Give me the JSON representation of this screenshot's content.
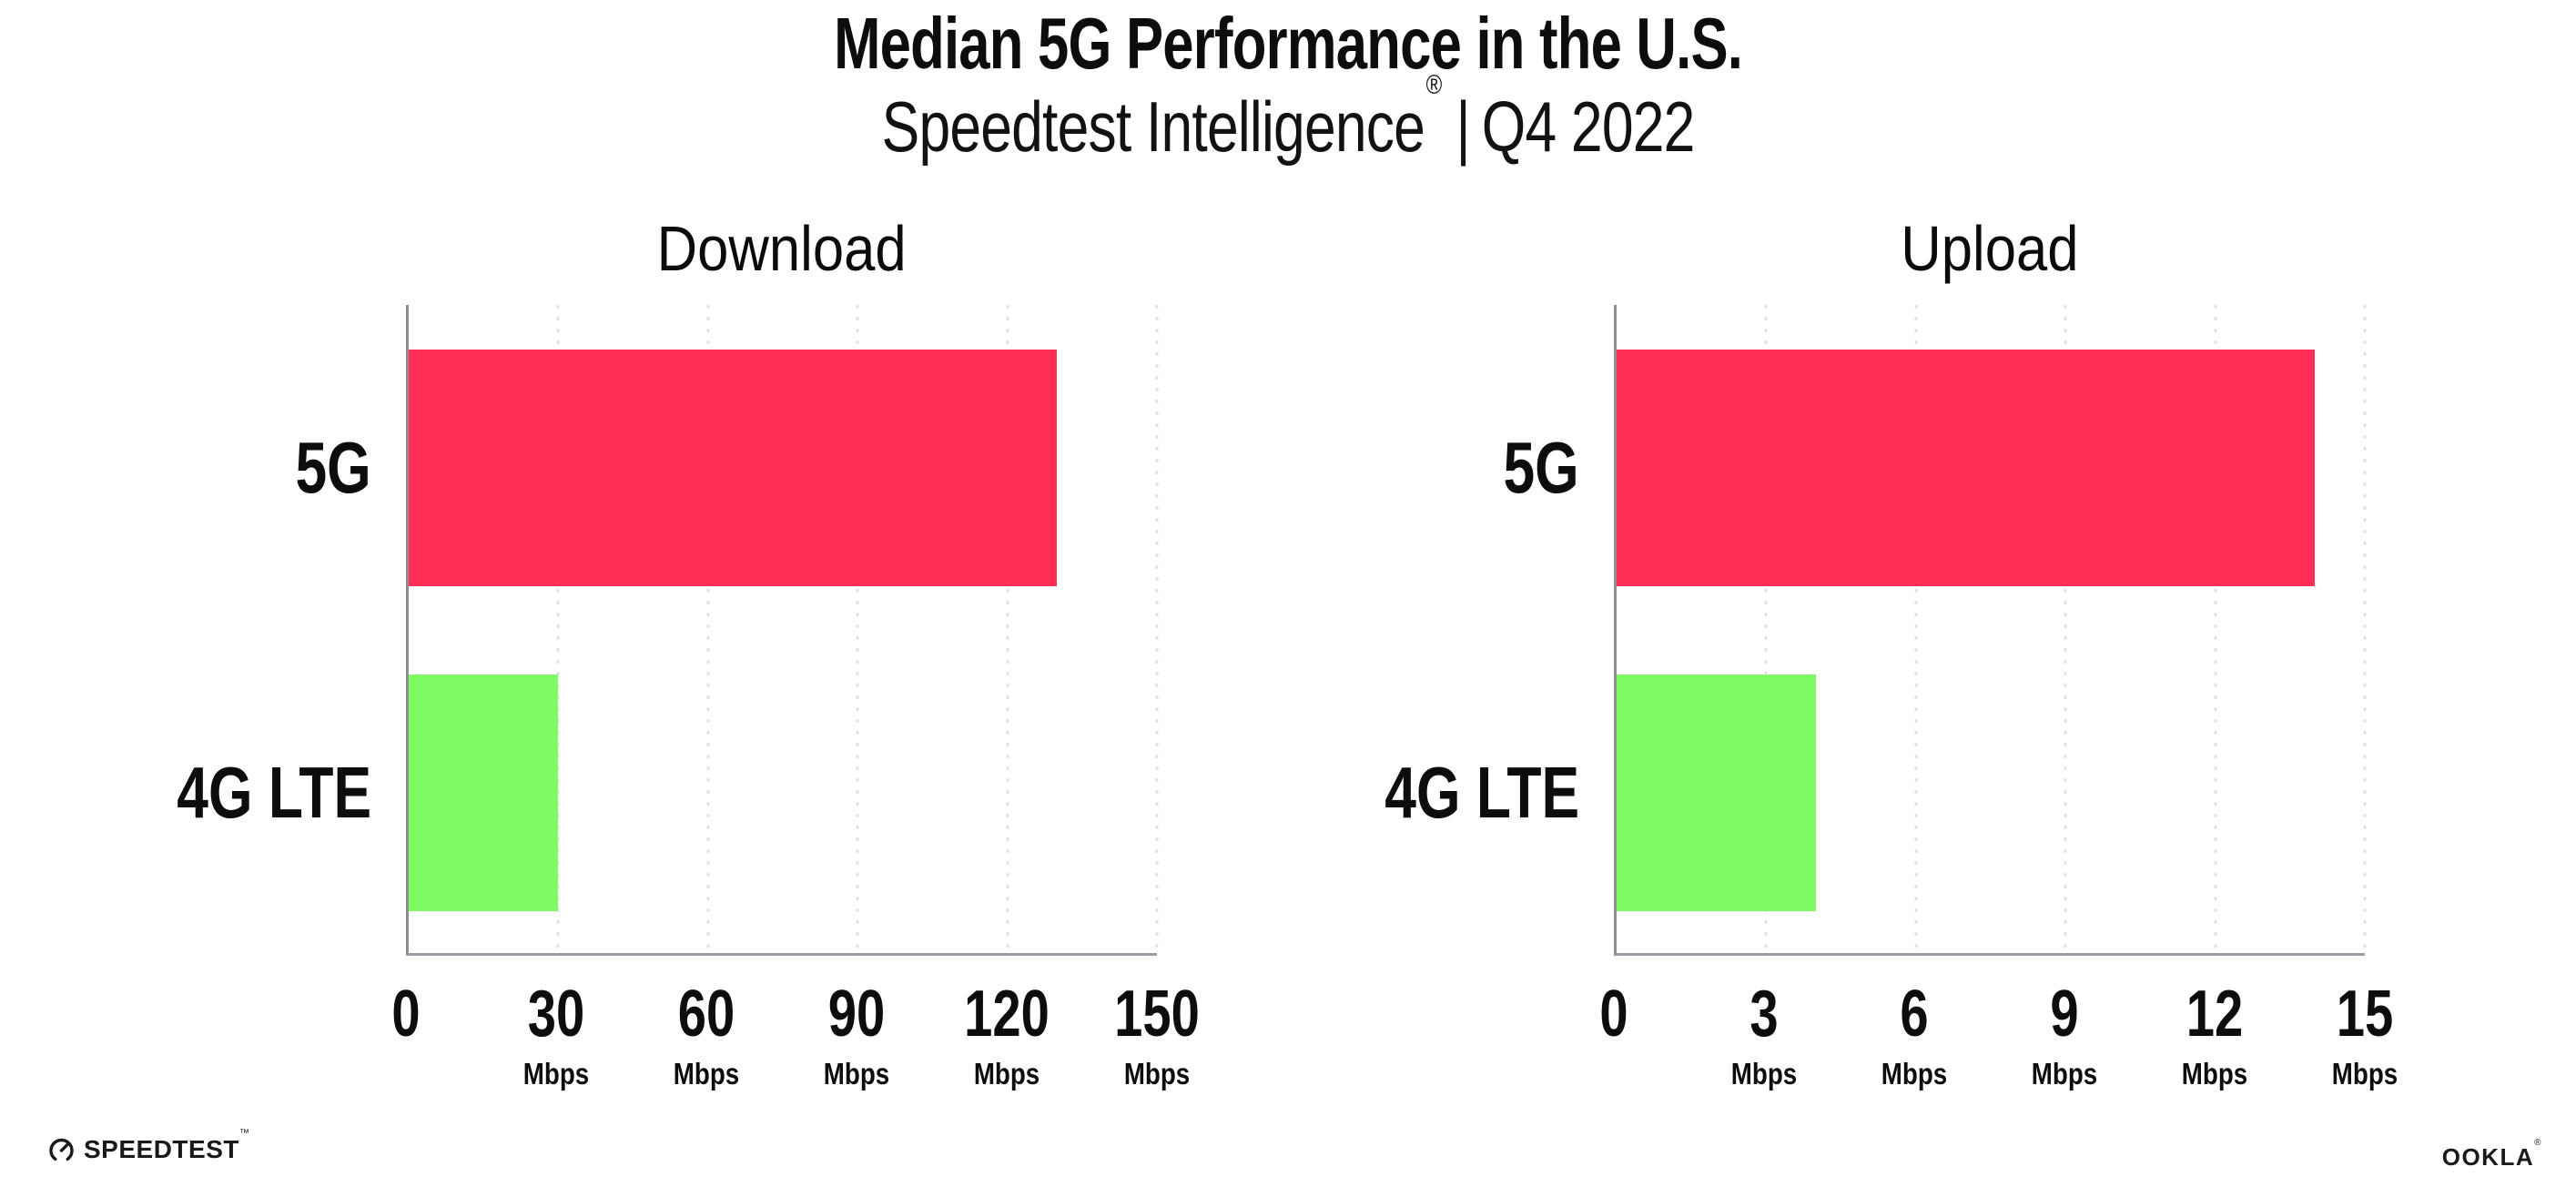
{
  "header": {
    "title": "Median 5G Performance in the U.S.",
    "subtitle_product": "Speedtest Intelligence",
    "subtitle_reg": "®",
    "subtitle_separator": "|",
    "subtitle_period": "Q4 2022"
  },
  "chart_data": [
    {
      "type": "bar",
      "orientation": "horizontal",
      "title": "Download",
      "categories": [
        "5G",
        "4G LTE"
      ],
      "values": [
        130,
        30
      ],
      "unit": "Mbps",
      "xlim": [
        0,
        150
      ],
      "xticks": [
        0,
        30,
        60,
        90,
        120,
        150
      ],
      "bar_colors": [
        "#FF2E56",
        "#7FFB63"
      ],
      "grid": "dotted-vertical",
      "legend_position": "none"
    },
    {
      "type": "bar",
      "orientation": "horizontal",
      "title": "Upload",
      "categories": [
        "5G",
        "4G LTE"
      ],
      "values": [
        14,
        4
      ],
      "unit": "Mbps",
      "xlim": [
        0,
        15
      ],
      "xticks": [
        0,
        3,
        6,
        9,
        12,
        15
      ],
      "bar_colors": [
        "#FF2E56",
        "#7FFB63"
      ],
      "grid": "dotted-vertical",
      "legend_position": "none"
    }
  ],
  "footer": {
    "speedtest_label": "SPEEDTEST",
    "speedtest_tm": "™",
    "ookla_label": "OOKLA",
    "ookla_reg": "®"
  },
  "colors": {
    "bar_5g": "#FF2E56",
    "bar_4g_lte": "#7FFB63",
    "gridline": "#E1E2EC",
    "axis_left": "#8F8F97",
    "axis_bottom": "#9B9BA3",
    "text": "#0D0D0D"
  }
}
